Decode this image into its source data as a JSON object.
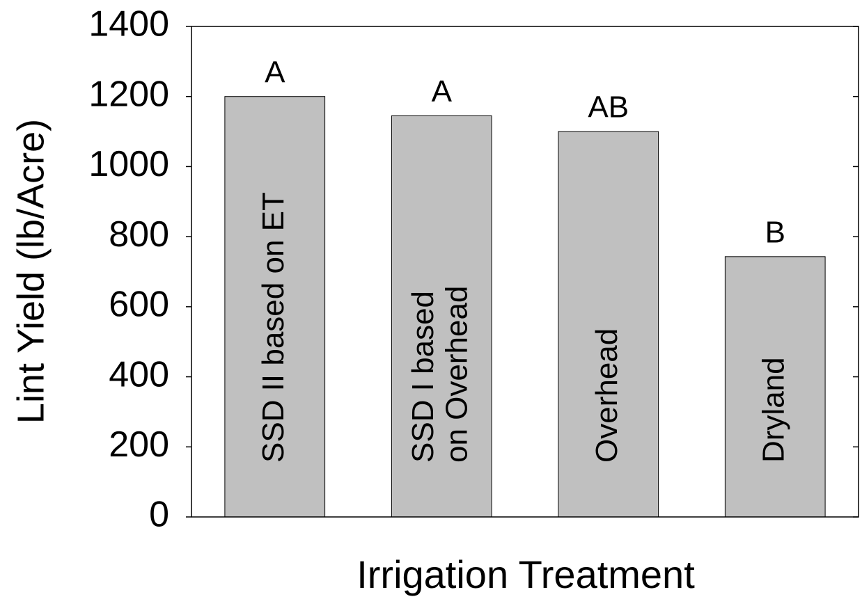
{
  "chart_data": {
    "type": "bar",
    "y_label": "Lint Yield (lb/Acre)",
    "x_label": "Irrigation Treatment",
    "categories": [
      "SSD II based on ET",
      "SSD I based\non Overhead",
      "Overhead",
      "Dryland"
    ],
    "values": [
      1200,
      1145,
      1100,
      743
    ],
    "annotations": [
      "A",
      "A",
      "AB",
      "B"
    ],
    "color": "#c0c0c0",
    "ylim": [
      0,
      1400
    ],
    "yticks": [
      0,
      200,
      400,
      600,
      800,
      1000,
      1200,
      1400
    ]
  }
}
